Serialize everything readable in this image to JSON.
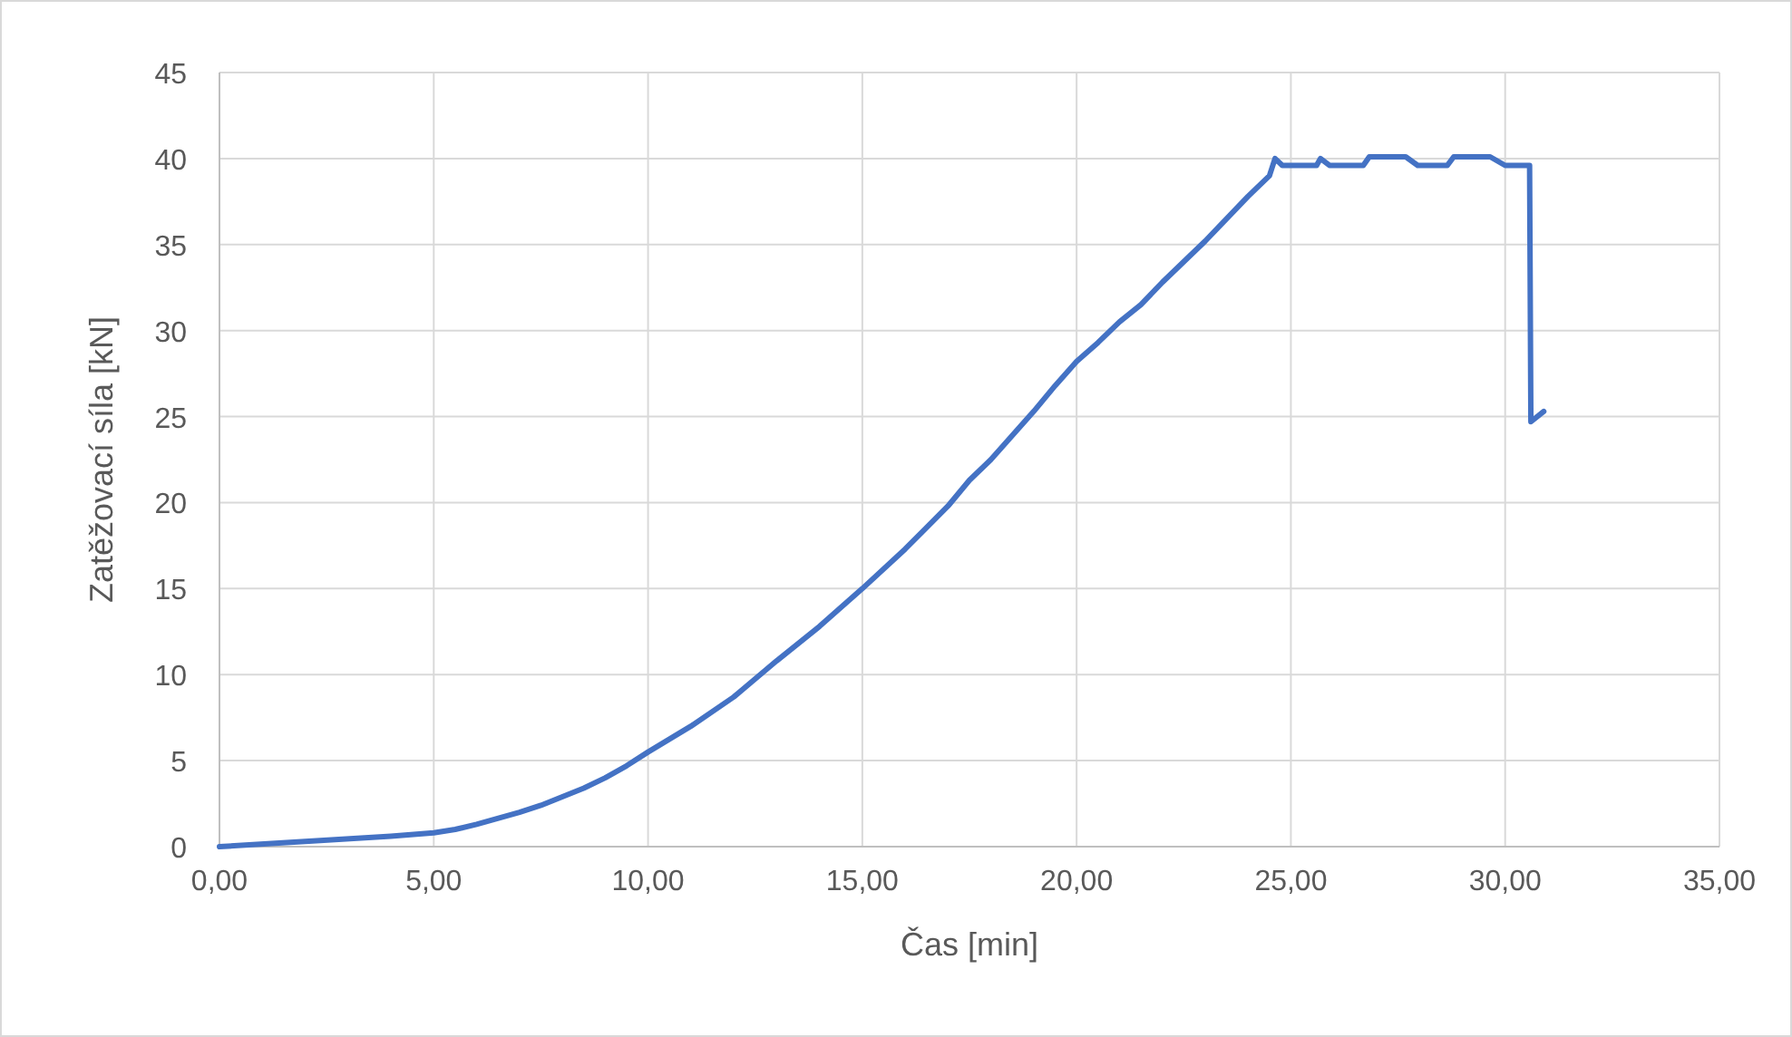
{
  "chart_data": {
    "type": "line",
    "xlabel": "Čas [min]",
    "ylabel": "Zatěžovací síla [kN]",
    "xlim": [
      0,
      35
    ],
    "xticks": [
      {
        "value": 0,
        "label": "0,00"
      },
      {
        "value": 5,
        "label": "5,00"
      },
      {
        "value": 10,
        "label": "10,00"
      },
      {
        "value": 15,
        "label": "15,00"
      },
      {
        "value": 20,
        "label": "20,00"
      },
      {
        "value": 25,
        "label": "25,00"
      },
      {
        "value": 30,
        "label": "30,00"
      },
      {
        "value": 35,
        "label": "35,00"
      }
    ],
    "ylim": [
      0,
      45
    ],
    "yticks": [
      0,
      5,
      10,
      15,
      20,
      25,
      30,
      35,
      40,
      45
    ],
    "grid": true,
    "marker": "none",
    "line_style": "solid",
    "series": [
      {
        "color": "#4472c4",
        "x": [
          0,
          2,
          4,
          5,
          5.5,
          6,
          7,
          7.5,
          8,
          8.5,
          9,
          9.5,
          10,
          11,
          12,
          13,
          14,
          15,
          16,
          17,
          17.5,
          18,
          19,
          19.5,
          20,
          20.5,
          21,
          21.5,
          22,
          23,
          24,
          24.5,
          24.63,
          24.8,
          25.6,
          25.69,
          25.9,
          26.69,
          26.83,
          27.68,
          27.96,
          28.65,
          28.8,
          29.65,
          30.0,
          30.57,
          30.6,
          30.9
        ],
        "values": [
          0,
          0.3,
          0.6,
          0.8,
          1.0,
          1.3,
          2.0,
          2.4,
          2.9,
          3.4,
          4.0,
          4.7,
          5.5,
          7.0,
          8.7,
          10.8,
          12.8,
          15.0,
          17.3,
          19.8,
          21.3,
          22.5,
          25.3,
          26.8,
          28.2,
          29.3,
          30.5,
          31.5,
          32.8,
          35.2,
          37.8,
          39.0,
          40.0,
          39.6,
          39.6,
          40.0,
          39.6,
          39.6,
          40.1,
          40.1,
          39.6,
          39.6,
          40.1,
          40.1,
          39.6,
          39.6,
          24.7,
          25.3
        ]
      }
    ]
  }
}
